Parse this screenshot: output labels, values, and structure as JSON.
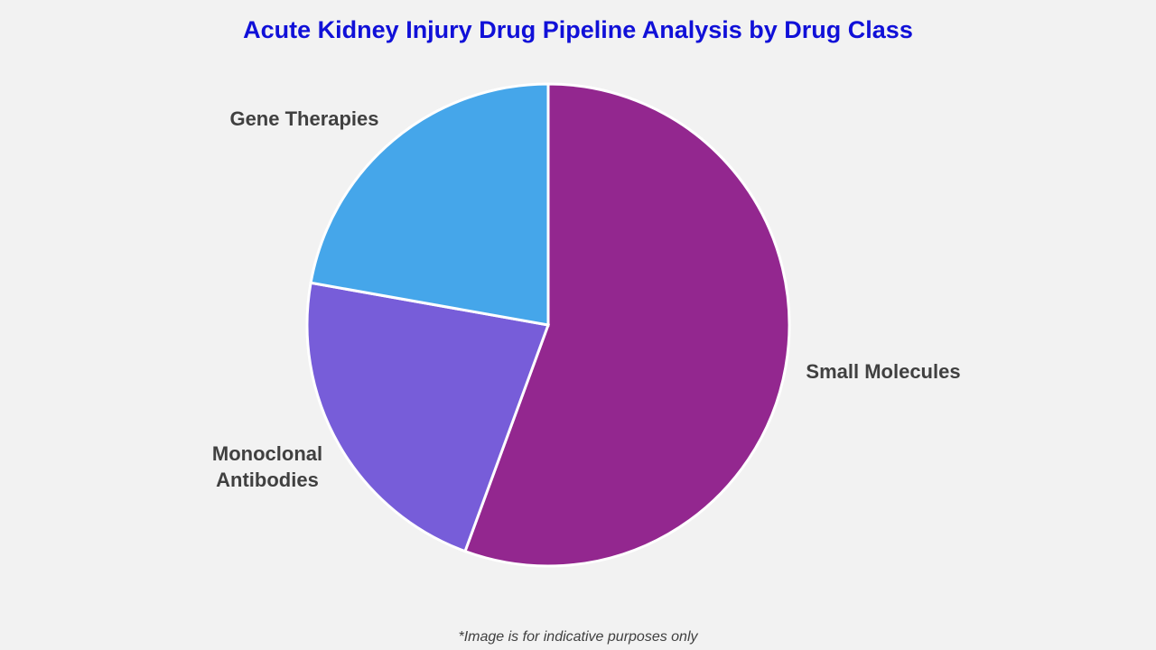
{
  "chart_data": {
    "type": "pie",
    "title": "Acute Kidney Injury Drug Pipeline Analysis by Drug Class",
    "slices": [
      {
        "label": "Small Molecules",
        "value": 55.6,
        "color": "#93278f"
      },
      {
        "label": "Monoclonal Antibodies",
        "label_lines": [
          "Monoclonal",
          "Antibodies"
        ],
        "value": 22.2,
        "color": "#775dd9"
      },
      {
        "label": "Gene Therapies",
        "value": 22.2,
        "color": "#45a6ea"
      }
    ],
    "start": "top",
    "direction": "clockwise",
    "legend": "none",
    "labels": "outside"
  },
  "footnote": "*Image is for indicative purposes only"
}
